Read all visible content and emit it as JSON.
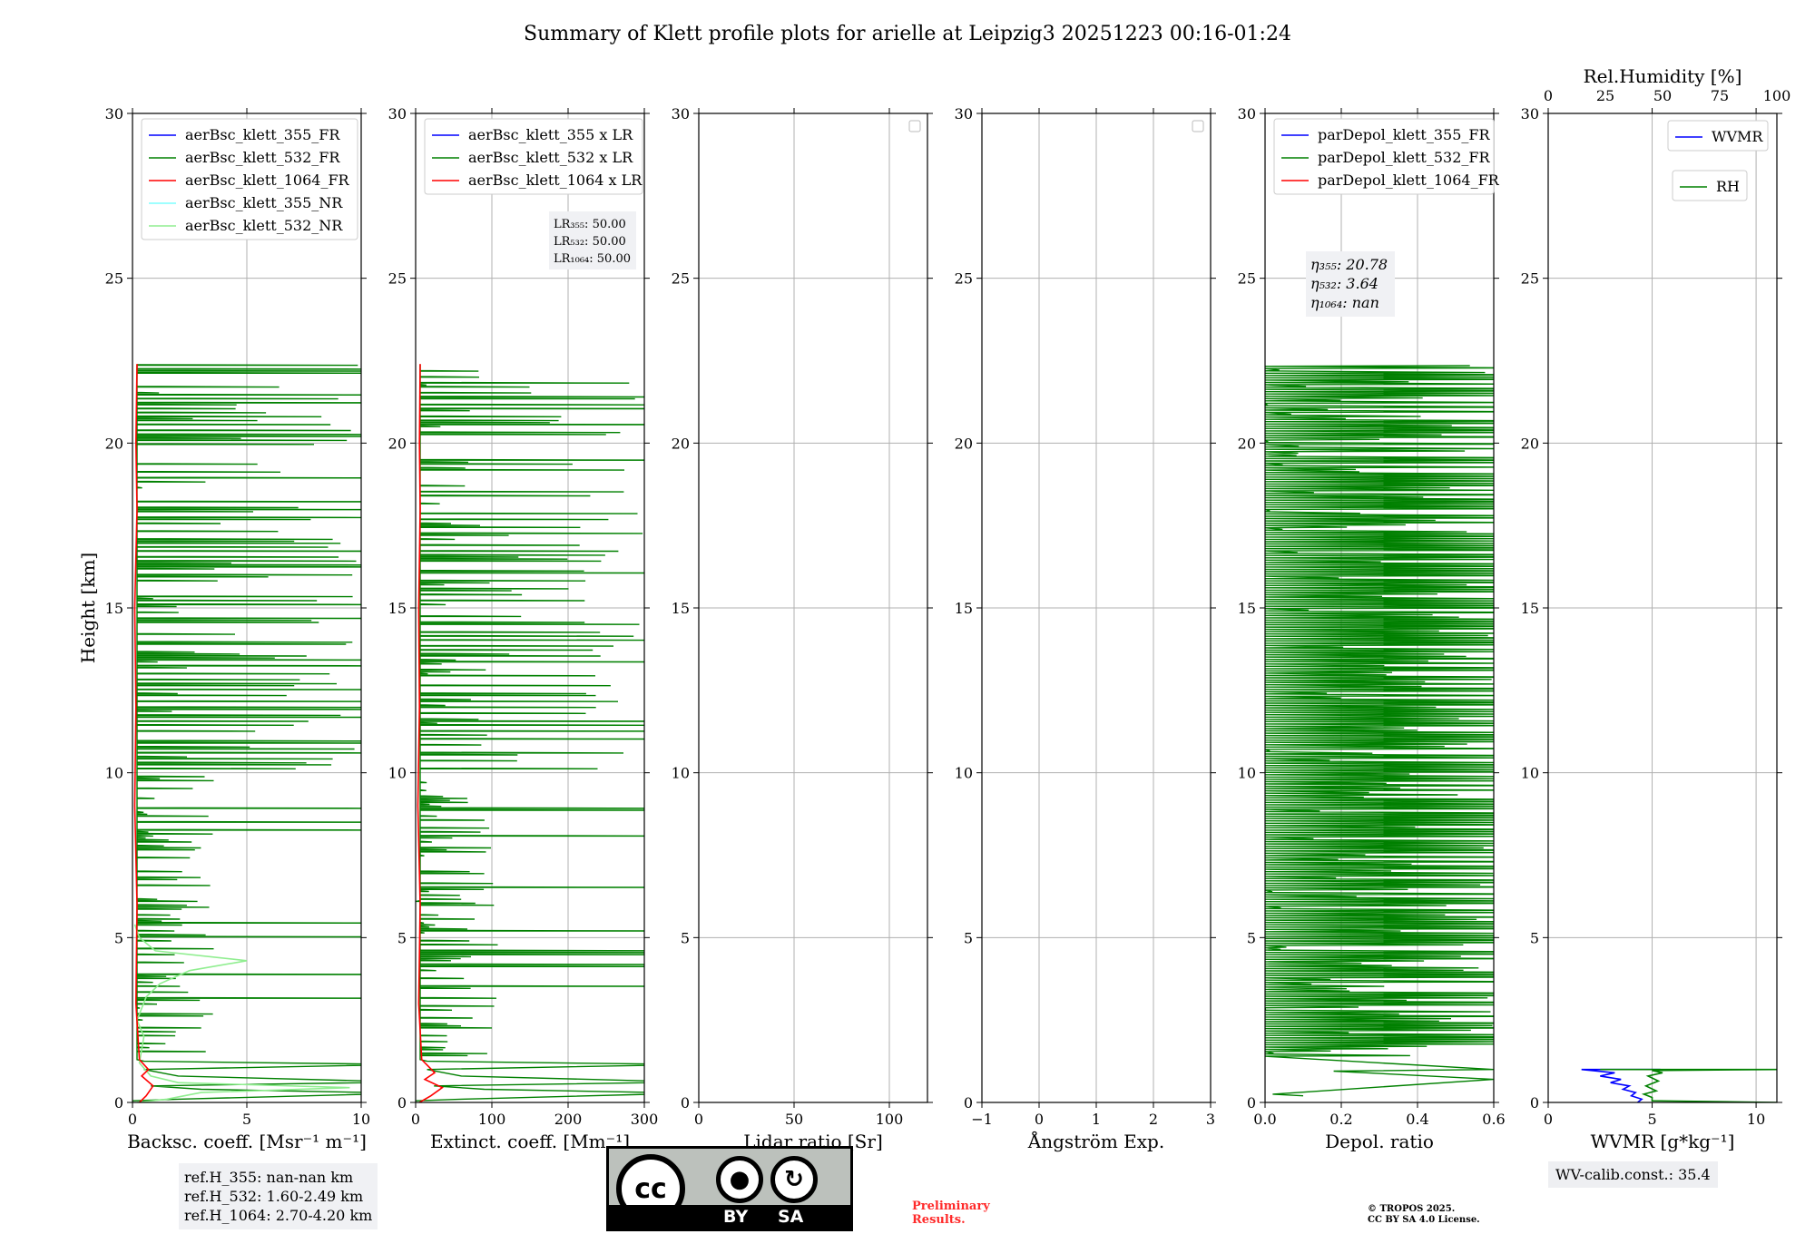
{
  "title": "Summary of Klett profile plots for arielle at Leipzig3 20251223 00:16-01:24",
  "ylabel": "Height [km]",
  "chart_data": [
    {
      "type": "line",
      "id": "bsc",
      "xlabel": "Backsc. coeff. [Msr⁻¹ m⁻¹]",
      "xlim": [
        0,
        10
      ],
      "xticks": [
        0,
        5,
        10
      ],
      "ylabel": "Height [km]",
      "ylim": [
        0,
        30
      ],
      "yticks": [
        0,
        5,
        10,
        15,
        20,
        25,
        30
      ],
      "legend": [
        {
          "label": "aerBsc_klett_355_FR",
          "color": "#0000ff"
        },
        {
          "label": "aerBsc_klett_532_FR",
          "color": "#008000"
        },
        {
          "label": "aerBsc_klett_1064_FR",
          "color": "#ff0000"
        },
        {
          "label": "aerBsc_klett_355_NR",
          "color": "#7fffff"
        },
        {
          "label": "aerBsc_klett_532_NR",
          "color": "#90ee90"
        }
      ],
      "legend_loc": "top-left",
      "series": [
        {
          "name": "aerBsc_klett_532_FR",
          "color": "#008000",
          "style": "noisy",
          "max_h": 22.4,
          "xmax": 10,
          "scale": 3.0,
          "seed": 11
        },
        {
          "name": "aerBsc_klett_532_NR",
          "color": "#90ee90",
          "points": [
            [
              0.2,
              0
            ],
            [
              1.5,
              0.1
            ],
            [
              3.0,
              0.3
            ],
            [
              9.5,
              0.45
            ],
            [
              2.0,
              0.6
            ],
            [
              0.8,
              0.8
            ],
            [
              0.3,
              1.2
            ],
            [
              0.5,
              2.0
            ],
            [
              0.2,
              2.5
            ],
            [
              0.6,
              3.2
            ],
            [
              1.2,
              3.6
            ],
            [
              2.5,
              4.0
            ],
            [
              5.0,
              4.3
            ],
            [
              1.0,
              4.6
            ],
            [
              0.3,
              5.0
            ],
            [
              0.1,
              5.4
            ]
          ]
        },
        {
          "name": "aerBsc_klett_1064_FR",
          "color": "#ff0000",
          "points": [
            [
              0.3,
              0
            ],
            [
              0.6,
              0.2
            ],
            [
              0.9,
              0.5
            ],
            [
              0.4,
              0.8
            ],
            [
              0.7,
              1.0
            ],
            [
              0.3,
              1.3
            ],
            [
              0.15,
              3.0
            ],
            [
              0.2,
              6.0
            ],
            [
              0.1,
              9.0
            ],
            [
              0.15,
              12.0
            ],
            [
              0.1,
              15.0
            ],
            [
              0.2,
              18.0
            ],
            [
              0.15,
              20.0
            ],
            [
              0.2,
              22.4
            ]
          ]
        }
      ],
      "annotation": [
        "ref.H_355: nan-nan km",
        "ref.H_532: 1.60-2.49 km",
        "ref.H_1064: 2.70-4.20 km"
      ]
    },
    {
      "type": "line",
      "id": "ext",
      "xlabel": "Extinct. coeff. [Mm⁻¹]",
      "xlim": [
        0,
        300
      ],
      "xticks": [
        0,
        100,
        200,
        300
      ],
      "ylim": [
        0,
        30
      ],
      "yticks": [
        0,
        5,
        10,
        15,
        20,
        25,
        30
      ],
      "legend": [
        {
          "label": "aerBsc_klett_355 x LR",
          "color": "#0000ff"
        },
        {
          "label": "aerBsc_klett_532 x LR",
          "color": "#008000"
        },
        {
          "label": "aerBsc_klett_1064 x LR",
          "color": "#ff0000"
        }
      ],
      "legend_loc": "top-left",
      "lr_box": {
        "lr355": "LR₃₅₅: 50.00",
        "lr532": "LR₅₃₂: 50.00",
        "lr1064": "LR₁₀₆₄: 50.00"
      },
      "series": [
        {
          "name": "aerBsc_klett_532 x LR",
          "color": "#008000",
          "style": "noisy",
          "max_h": 22.4,
          "xmax": 300,
          "scale": 90,
          "seed": 23
        },
        {
          "name": "aerBsc_klett_1064 x LR",
          "color": "#ff0000",
          "points": [
            [
              5,
              0
            ],
            [
              20,
              0.2
            ],
            [
              35,
              0.45
            ],
            [
              12,
              0.7
            ],
            [
              25,
              0.9
            ],
            [
              8,
              1.3
            ],
            [
              4,
              3.0
            ],
            [
              6,
              6.0
            ],
            [
              3,
              9.0
            ],
            [
              5,
              12.0
            ],
            [
              4,
              15.0
            ],
            [
              6,
              18.0
            ],
            [
              5,
              20.0
            ],
            [
              6,
              22.4
            ]
          ]
        }
      ]
    },
    {
      "type": "line",
      "id": "lr",
      "xlabel": "Lidar ratio [Sr]",
      "xlim": [
        0,
        120
      ],
      "xticks": [
        0,
        50,
        100
      ],
      "ylim": [
        0,
        30
      ],
      "yticks": [
        0,
        5,
        10,
        15,
        20,
        25,
        30
      ],
      "legend": [],
      "series": []
    },
    {
      "type": "line",
      "id": "ae",
      "xlabel": "Ångström Exp.",
      "xlim": [
        -1,
        3
      ],
      "xticks": [
        -1,
        0,
        1,
        2,
        3
      ],
      "ylim": [
        0,
        30
      ],
      "yticks": [
        0,
        5,
        10,
        15,
        20,
        25,
        30
      ],
      "legend": [],
      "series": []
    },
    {
      "type": "line",
      "id": "depol",
      "xlabel": "Depol. ratio",
      "xlim": [
        0,
        0.6
      ],
      "xticks": [
        "0.0",
        "0.2",
        "0.4",
        "0.6"
      ],
      "ylim": [
        0,
        30
      ],
      "yticks": [
        0,
        5,
        10,
        15,
        20,
        25,
        30
      ],
      "legend": [
        {
          "label": "parDepol_klett_355_FR",
          "color": "#0000ff"
        },
        {
          "label": "parDepol_klett_532_FR",
          "color": "#008000"
        },
        {
          "label": "parDepol_klett_1064_FR",
          "color": "#ff0000"
        }
      ],
      "legend_loc": "top-left",
      "eta_box": {
        "eta355": "η₃₅₅: 20.78",
        "eta532": "η₅₃₂: 3.64",
        "eta1064": "η₁₀₆₄: nan"
      },
      "series": [
        {
          "name": "parDepol_klett_532_FR",
          "color": "#008000",
          "style": "depol",
          "max_h": 22.4,
          "xmax": 0.6,
          "seed": 37
        }
      ]
    },
    {
      "type": "line",
      "id": "wv",
      "xlabel": "WVMR [g*kg⁻¹]",
      "xlim": [
        0,
        11
      ],
      "xticks": [
        0,
        5,
        10
      ],
      "top_xlabel": "Rel.Humidity [%]",
      "top_xlim": [
        0,
        100
      ],
      "top_xticks": [
        0,
        25,
        50,
        75,
        100
      ],
      "ylim": [
        0,
        30
      ],
      "yticks": [
        0,
        5,
        10,
        15,
        20,
        25,
        30
      ],
      "legend": [
        {
          "label": "WVMR",
          "color": "#0000ff"
        }
      ],
      "legend2": [
        {
          "label": "RH",
          "color": "#008000"
        }
      ],
      "series": [
        {
          "name": "WVMR",
          "color": "#0000ff",
          "points": [
            [
              4.3,
              0.0
            ],
            [
              4.5,
              0.1
            ],
            [
              4.0,
              0.2
            ],
            [
              4.2,
              0.3
            ],
            [
              3.6,
              0.4
            ],
            [
              3.9,
              0.5
            ],
            [
              3.0,
              0.6
            ],
            [
              3.5,
              0.7
            ],
            [
              2.5,
              0.8
            ],
            [
              3.2,
              0.9
            ],
            [
              1.6,
              1.0
            ],
            [
              5.4,
              1.0
            ]
          ]
        },
        {
          "name": "RH",
          "color": "#008000",
          "points": [
            [
              11,
              0.0
            ],
            [
              5,
              0.05
            ],
            [
              5.0,
              0.15
            ],
            [
              4.6,
              0.25
            ],
            [
              5.2,
              0.35
            ],
            [
              4.7,
              0.5
            ],
            [
              5.3,
              0.65
            ],
            [
              4.8,
              0.8
            ],
            [
              5.5,
              0.9
            ],
            [
              5.0,
              0.97
            ],
            [
              11,
              1.0
            ],
            [
              2.5,
              1.0
            ]
          ]
        }
      ],
      "annotation": "WV-calib.const.: 35.4"
    }
  ],
  "logo": {
    "by": "BY",
    "sa": "SA",
    "cc": "cc"
  },
  "preliminary": "Preliminary\nResults.",
  "copyright": "© TROPOS 2025.\nCC BY SA 4.0 License."
}
